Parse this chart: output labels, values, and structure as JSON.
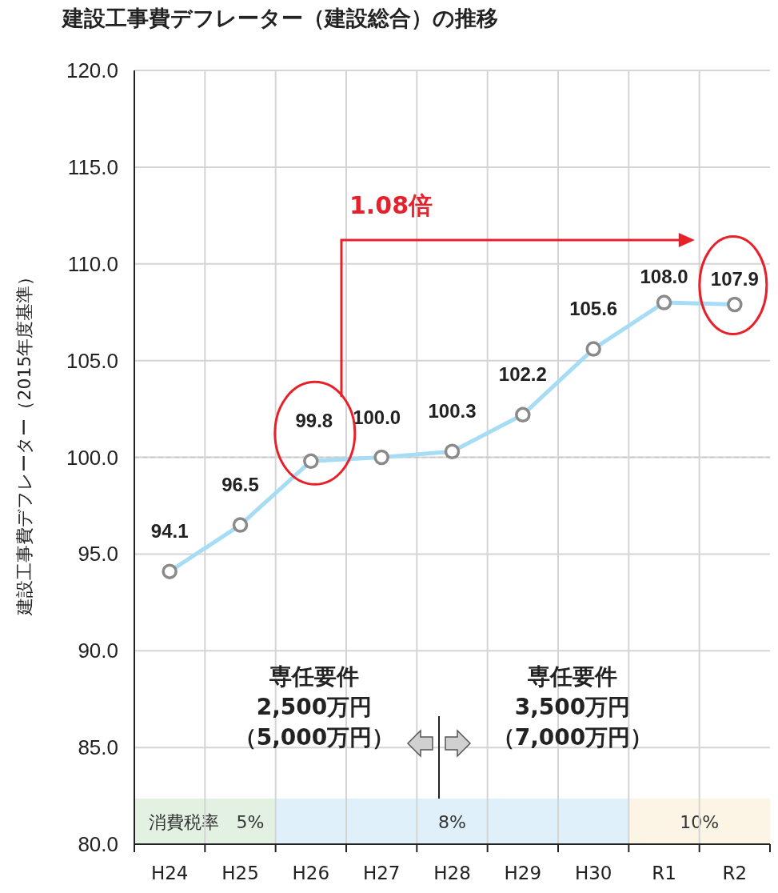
{
  "chart_data": {
    "type": "line",
    "title": "建設工事費デフレーター（建設総合）の推移",
    "ylabel": "建設工事費デフレーター（2015年度基準）",
    "categories": [
      "H24",
      "H25",
      "H26",
      "H27",
      "H28",
      "H29",
      "H30",
      "R1",
      "R2"
    ],
    "series": [
      {
        "color": "#a6dcf4",
        "values": [
          94.1,
          96.5,
          99.8,
          100.0,
          100.3,
          102.2,
          105.6,
          108.0,
          107.9
        ],
        "value_labels": [
          "94.1",
          "96.5",
          "99.8",
          "100.0",
          "100.3",
          "102.2",
          "105.6",
          "108.0",
          "107.9"
        ]
      }
    ],
    "ylim": [
      80,
      120
    ],
    "yticks": [
      {
        "value": 80,
        "label": "80.0"
      },
      {
        "value": 85,
        "label": "85.0"
      },
      {
        "value": 90,
        "label": "90.0"
      },
      {
        "value": 95,
        "label": "95.0"
      },
      {
        "value": 100,
        "label": "100.0"
      },
      {
        "value": 105,
        "label": "105.0"
      },
      {
        "value": 110,
        "label": "110.0"
      },
      {
        "value": 115,
        "label": "115.0"
      },
      {
        "value": 120,
        "label": "120.0"
      }
    ],
    "grid": true,
    "marker": "circle",
    "line_style": "solid",
    "ref_lines": [
      {
        "axis": "y",
        "value": 100,
        "color": "#c8c8c8",
        "line_style": "dashed"
      }
    ],
    "bands": [
      {
        "axis": "x",
        "from": "H24",
        "to": "H25",
        "label": "消費税率　5%",
        "color": "#e3f1e3"
      },
      {
        "axis": "x",
        "from": "H26",
        "to": "H30",
        "label": "8%",
        "color": "#dff0fa"
      },
      {
        "axis": "x",
        "from": "R1",
        "to": "R2",
        "label": "10%",
        "color": "#fcf4e4"
      }
    ],
    "annotations": [
      "1.08倍",
      "専任要件",
      "2,500万円",
      "（5,000万円）",
      "専任要件",
      "3,500万円",
      "（7,000万円）"
    ]
  }
}
